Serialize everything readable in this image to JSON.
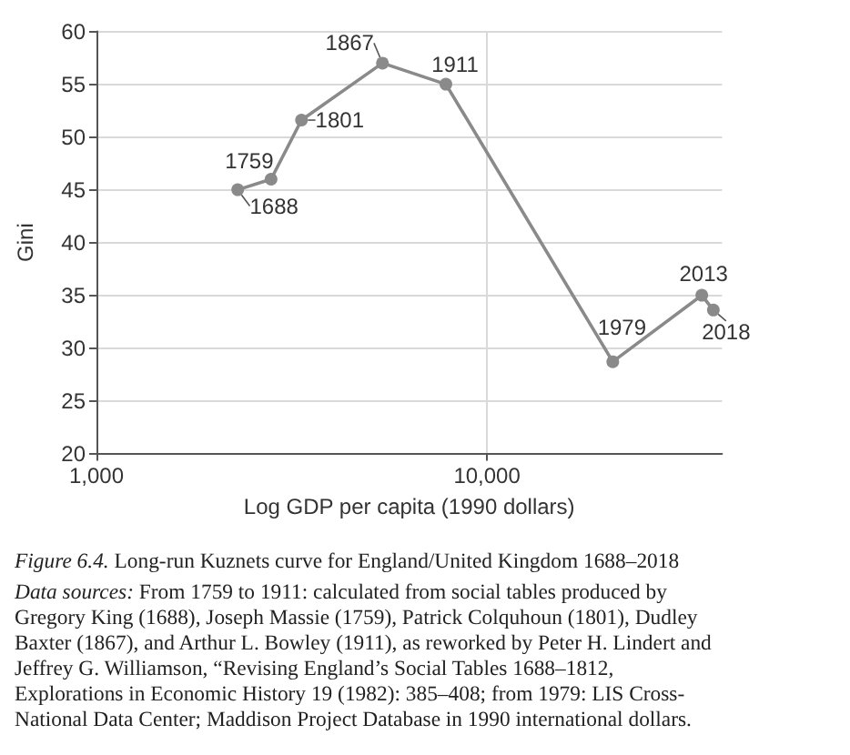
{
  "chart_data": {
    "type": "line",
    "title": "Figure 6.4. Long-run Kuznets curve for England/United Kingdom 1688–2018",
    "xlabel": "Log GDP per capita (1990 dollars)",
    "ylabel": "Gini",
    "x": [
      2300,
      2800,
      3350,
      5400,
      7850,
      21000,
      35500,
      38000
    ],
    "values": [
      45,
      46,
      51.6,
      57,
      55,
      28.7,
      35,
      33.6
    ],
    "color": "#8a8a8a",
    "log": "x",
    "xlim": [
      1000,
      40000
    ],
    "xticks": [
      {
        "value": 1000,
        "label": "1,000"
      },
      {
        "value": 10000,
        "label": "10,000"
      }
    ],
    "ylim": [
      20,
      60
    ],
    "yticks": [
      20,
      25,
      30,
      35,
      40,
      45,
      50,
      55,
      60
    ],
    "grid": true,
    "marker": "circle",
    "line_style": "solid",
    "annotations": [
      {
        "text": "1688",
        "x": 2300,
        "y": 45
      },
      {
        "text": "1759",
        "x": 2800,
        "y": 46
      },
      {
        "text": "1801",
        "x": 3350,
        "y": 51.6
      },
      {
        "text": "1867",
        "x": 5400,
        "y": 57
      },
      {
        "text": "1911",
        "x": 7850,
        "y": 55
      },
      {
        "text": "1979",
        "x": 21000,
        "y": 28.7
      },
      {
        "text": "2013",
        "x": 35500,
        "y": 35
      },
      {
        "text": "2018",
        "x": 38000,
        "y": 33.6
      },
      "Data sources: From 1759 to 1911: calculated from social tables produced by Gregory King (1688), Joseph Massie (1759), Patrick Colquhoun (1801), Dudley Baxter (1867), and Arthur L. Bowley (1911), as reworked by Peter H. Lindert and Jeffrey G. Williamson, “Revising England’s Social Tables 1688–1812, Explorations in Economic History 19 (1982): 385–408; from 1979: LIS Cross-National Data Center; Maddison Project Database in 1990 international dollars."
    ]
  }
}
